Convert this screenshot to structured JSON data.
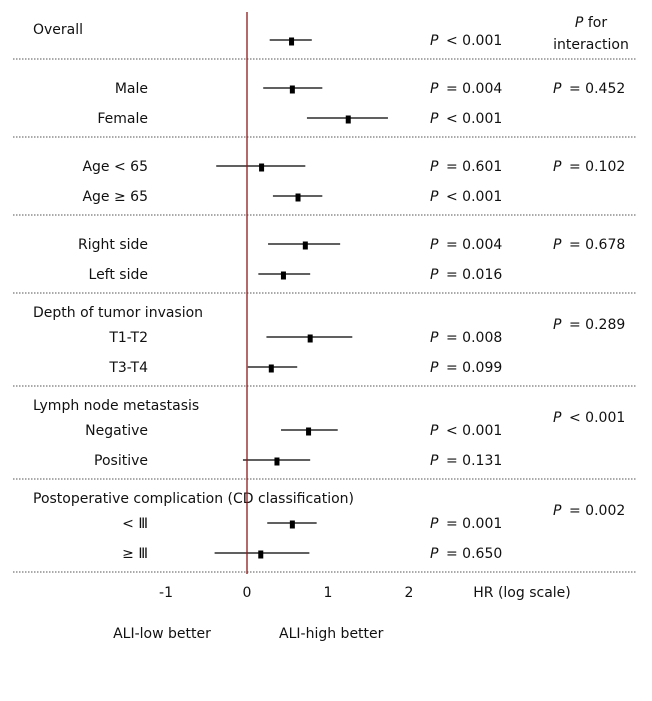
{
  "chart_data": {
    "type": "forest",
    "x_scale": "log",
    "xlim": [
      -1.25,
      2.3
    ],
    "xticks": [
      -1,
      0,
      1,
      2
    ],
    "xlabel": "HR (log scale)",
    "interaction_header": [
      "P for",
      "interaction"
    ],
    "direction_labels": {
      "left": "ALI-low better",
      "right": "ALI-high better"
    },
    "colors": {
      "reference_line": "#8b1a1a",
      "marks": "#000000",
      "divider": "#555555"
    },
    "groups": [
      {
        "label": "Overall",
        "interaction_p": "",
        "rows": [
          {
            "label": "",
            "estimate": 0.55,
            "ci": [
              0.28,
              0.8
            ],
            "p": "< 0.001"
          }
        ]
      },
      {
        "label": "",
        "interaction_p": "= 0.452",
        "rows": [
          {
            "label": "Male",
            "estimate": 0.56,
            "ci": [
              0.2,
              0.93
            ],
            "p": "= 0.004"
          },
          {
            "label": "Female",
            "estimate": 1.25,
            "ci": [
              0.74,
              1.74
            ],
            "p": "< 0.001"
          }
        ]
      },
      {
        "label": "",
        "interaction_p": "= 0.102",
        "rows": [
          {
            "label": "Age < 65",
            "estimate": 0.18,
            "ci": [
              -0.38,
              0.72
            ],
            "p": "= 0.601"
          },
          {
            "label": "Age ≥ 65",
            "estimate": 0.63,
            "ci": [
              0.32,
              0.93
            ],
            "p": "< 0.001"
          }
        ]
      },
      {
        "label": "",
        "interaction_p": "= 0.678",
        "rows": [
          {
            "label": "Right side",
            "estimate": 0.72,
            "ci": [
              0.26,
              1.15
            ],
            "p": "= 0.004"
          },
          {
            "label": "Left side",
            "estimate": 0.45,
            "ci": [
              0.14,
              0.78
            ],
            "p": "= 0.016"
          }
        ]
      },
      {
        "label": "Depth of tumor invasion",
        "interaction_p": "= 0.289",
        "rows": [
          {
            "label": "T1-T2",
            "estimate": 0.78,
            "ci": [
              0.24,
              1.3
            ],
            "p": "= 0.008"
          },
          {
            "label": "T3-T4",
            "estimate": 0.3,
            "ci": [
              0.01,
              0.62
            ],
            "p": "= 0.099"
          }
        ]
      },
      {
        "label": "Lymph node metastasis",
        "interaction_p": "< 0.001",
        "rows": [
          {
            "label": "Negative",
            "estimate": 0.76,
            "ci": [
              0.42,
              1.12
            ],
            "p": "< 0.001"
          },
          {
            "label": "Positive",
            "estimate": 0.37,
            "ci": [
              -0.05,
              0.78
            ],
            "p": "= 0.131"
          }
        ]
      },
      {
        "label": "Postoperative complication (CD classification)",
        "interaction_p": "= 0.002",
        "rows": [
          {
            "label": "< Ⅲ",
            "estimate": 0.56,
            "ci": [
              0.25,
              0.86
            ],
            "p": "= 0.001"
          },
          {
            "label": "≥ Ⅲ",
            "estimate": 0.17,
            "ci": [
              -0.4,
              0.77
            ],
            "p": "= 0.650"
          }
        ]
      }
    ]
  }
}
